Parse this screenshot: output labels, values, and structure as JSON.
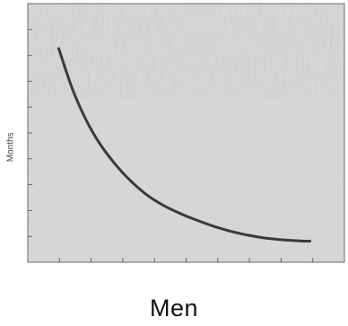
{
  "caption": "Men",
  "chart_data": {
    "type": "line",
    "title": "",
    "xlabel": "",
    "ylabel": "Months",
    "series": [
      {
        "values": [
          [
            0.0,
            8.0
          ],
          [
            0.4,
            6.55
          ],
          [
            0.8,
            5.45
          ],
          [
            1.2,
            4.6
          ],
          [
            1.6,
            3.95
          ],
          [
            2.0,
            3.4
          ],
          [
            2.5,
            2.85
          ],
          [
            3.0,
            2.45
          ],
          [
            3.5,
            2.15
          ],
          [
            4.0,
            1.9
          ],
          [
            4.5,
            1.68
          ],
          [
            5.0,
            1.5
          ],
          [
            5.5,
            1.36
          ],
          [
            6.0,
            1.26
          ],
          [
            6.5,
            1.2
          ],
          [
            7.0,
            1.16
          ],
          [
            7.3,
            1.15
          ]
        ]
      }
    ],
    "xlim": [
      -0.9,
      8.3
    ],
    "ylim": [
      0.4,
      9.6
    ],
    "x_ticks": 11,
    "y_ticks": 11,
    "grid": false,
    "colors": {
      "line": "#3a3a3a",
      "frame": "#6a6a6a",
      "background": "#d9d9d9",
      "noise_light": "#e4e4e4",
      "noise_dark": "#b5b5b5"
    }
  }
}
